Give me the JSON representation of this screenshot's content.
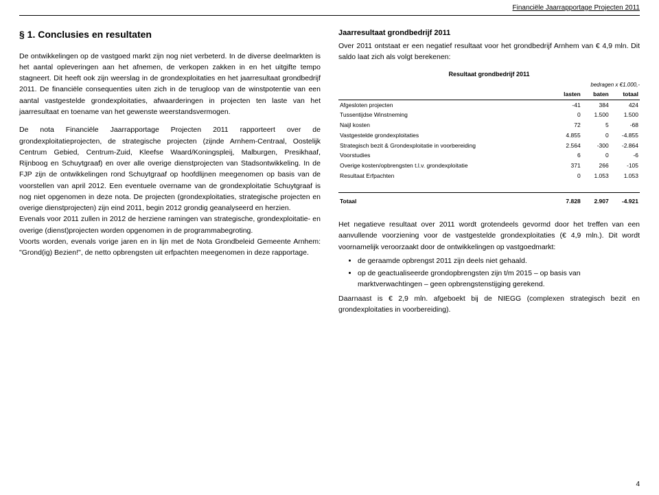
{
  "header": {
    "running_title": "Financiële Jaarrapportage Projecten 2011"
  },
  "left": {
    "heading": "§ 1. Conclusies en resultaten",
    "p1": "De ontwikkelingen op de vastgoed markt zijn nog niet verbeterd. In de diverse deelmarkten is het aantal opleveringen aan het afnemen, de verkopen zakken in en het uitgifte tempo stagneert. Dit heeft ook zijn weerslag in de grondexploitaties en het jaarresultaat grondbedrijf 2011. De financiële consequenties uiten zich in de terugloop van de winstpotentie van een aantal vastgestelde grondexploitaties, afwaarderingen in projecten ten laste van het jaarresultaat en toename van het gewenste weerstandsvermogen.",
    "p2": "De nota Financiële Jaarrapportage Projecten 2011 rapporteert over de grondexploitatieprojecten, de strategische projecten (zijnde Arnhem-Centraal, Oostelijk Centrum Gebied, Centrum-Zuid, Kleefse Waard/Koningspleij, Malburgen, Presikhaaf, Rijnboog en Schuytgraaf) en over alle overige dienstprojecten van Stadsontwikkeling. In de FJP zijn de ontwikkelingen rond Schuytgraaf op hoofdlijnen meegenomen op basis van de voorstellen van april 2012. Een eventuele overname van de grondexploitatie Schuytgraaf is nog niet opgenomen in deze nota. De projecten (grondexploitaties, strategische projecten en overige dienstprojecten) zijn eind 2011, begin 2012 grondig geanalyseerd en herzien.",
    "p3": "Evenals voor 2011 zullen in 2012 de herziene ramingen van strategische, grondexploitatie- en overige (dienst)projecten worden opgenomen in de programmabegroting.",
    "p4": "Voorts worden, evenals vorige jaren en in lijn met de Nota Grondbeleid Gemeente Arnhem: \"Grond(ig) Bezien!\", de netto opbrengsten uit erfpachten meegenomen in deze rapportage."
  },
  "right": {
    "subheading": "Jaarresultaat grondbedrijf 2011",
    "intro": "Over 2011 ontstaat er een negatief resultaat voor het grondbedrijf Arnhem van € 4,9 mln. Dit saldo laat zich als volgt berekenen:",
    "table": {
      "caption": "Resultaat grondbedrijf 2011",
      "unit_note": "bedragen x €1.000,-",
      "columns": [
        "",
        "lasten",
        "baten",
        "totaal"
      ],
      "rows": [
        [
          "Afgesloten projecten",
          "-41",
          "384",
          "424"
        ],
        [
          "Tussentijdse Winstneming",
          "0",
          "1.500",
          "1.500"
        ],
        [
          "Naijl kosten",
          "72",
          "5",
          "-68"
        ],
        [
          "Vastgestelde grondexploitaties",
          "4.855",
          "0",
          "-4.855"
        ],
        [
          "Strategisch bezit & Grondexploitatie in voorbereiding",
          "2.564",
          "-300",
          "-2.864"
        ],
        [
          "Voorstudies",
          "6",
          "0",
          "-6"
        ],
        [
          "Overige kosten/opbrengsten t.l.v. grondexploitatie",
          "371",
          "266",
          "-105"
        ],
        [
          "Resultaat Erfpachten",
          "0",
          "1.053",
          "1.053"
        ]
      ],
      "total": [
        "Totaal",
        "7.828",
        "2.907",
        "-4.921"
      ]
    },
    "after1": "Het negatieve resultaat over 2011 wordt grotendeels gevormd door het treffen van een aanvullende voorziening voor de vastgestelde grondexploitaties (€ 4,9 mln.). Dit wordt voornamelijk veroorzaakt door de ontwikkelingen op vastgoedmarkt:",
    "bullets": [
      "de geraamde opbrengst 2011 zijn deels niet gehaald.",
      "op de geactualiseerde grondopbrengsten zijn t/m 2015 – op basis van marktverwachtingen – geen opbrengstenstijging gerekend."
    ],
    "after2": "Daarnaast is € 2,9 mln. afgeboekt bij de NIEGG (complexen strategisch bezit en grondexploitaties in voorbereiding)."
  },
  "page_number": "4"
}
